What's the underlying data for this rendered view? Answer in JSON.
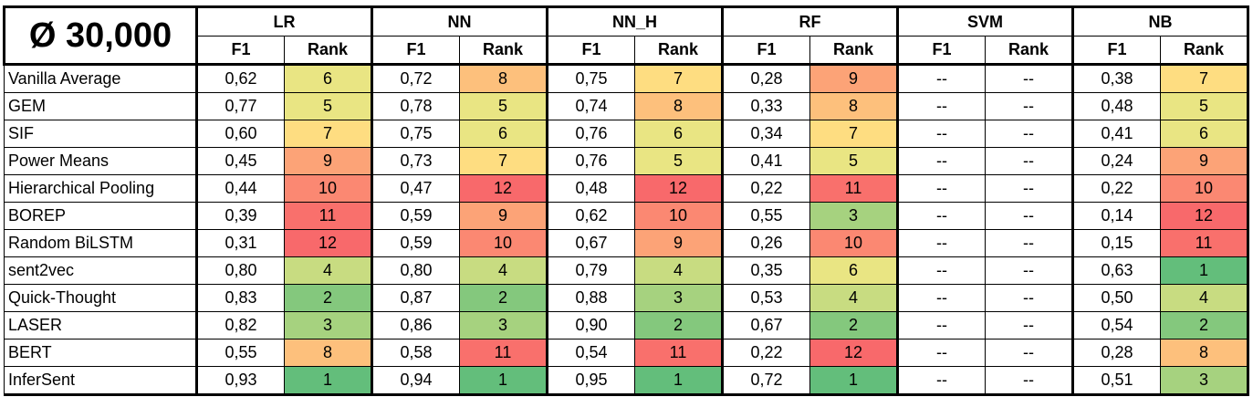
{
  "title": "Ø 30,000",
  "sub_headers": {
    "f1": "F1",
    "rank": "Rank"
  },
  "models": [
    "LR",
    "NN",
    "NN_H",
    "RF",
    "SVM",
    "NB"
  ],
  "rank_colors": {
    "1": "#63be7b",
    "2": "#84c87d",
    "3": "#a6d27f",
    "4": "#c8dc81",
    "5": "#e9e583",
    "6": "#e9e583",
    "7": "#fedd81",
    "8": "#fdc07c",
    "9": "#fca377",
    "10": "#fb8872",
    "11": "#f9706c",
    "12": "#f8696b"
  },
  "rows": [
    {
      "label": "Vanilla Average",
      "cells": [
        [
          "0,62",
          "6"
        ],
        [
          "0,72",
          "8"
        ],
        [
          "0,75",
          "7"
        ],
        [
          "0,28",
          "9"
        ],
        [
          "--",
          "--"
        ],
        [
          "0,38",
          "7"
        ]
      ]
    },
    {
      "label": "GEM",
      "cells": [
        [
          "0,77",
          "5"
        ],
        [
          "0,78",
          "5"
        ],
        [
          "0,74",
          "8"
        ],
        [
          "0,33",
          "8"
        ],
        [
          "--",
          "--"
        ],
        [
          "0,48",
          "5"
        ]
      ]
    },
    {
      "label": "SIF",
      "cells": [
        [
          "0,60",
          "7"
        ],
        [
          "0,75",
          "6"
        ],
        [
          "0,76",
          "6"
        ],
        [
          "0,34",
          "7"
        ],
        [
          "--",
          "--"
        ],
        [
          "0,41",
          "6"
        ]
      ]
    },
    {
      "label": "Power Means",
      "cells": [
        [
          "0,45",
          "9"
        ],
        [
          "0,73",
          "7"
        ],
        [
          "0,76",
          "5"
        ],
        [
          "0,41",
          "5"
        ],
        [
          "--",
          "--"
        ],
        [
          "0,24",
          "9"
        ]
      ]
    },
    {
      "label": "Hierarchical Pooling",
      "cells": [
        [
          "0,44",
          "10"
        ],
        [
          "0,47",
          "12"
        ],
        [
          "0,48",
          "12"
        ],
        [
          "0,22",
          "11"
        ],
        [
          "--",
          "--"
        ],
        [
          "0,22",
          "10"
        ]
      ]
    },
    {
      "label": "BOREP",
      "cells": [
        [
          "0,39",
          "11"
        ],
        [
          "0,59",
          "9"
        ],
        [
          "0,62",
          "10"
        ],
        [
          "0,55",
          "3"
        ],
        [
          "--",
          "--"
        ],
        [
          "0,14",
          "12"
        ]
      ]
    },
    {
      "label": "Random BiLSTM",
      "cells": [
        [
          "0,31",
          "12"
        ],
        [
          "0,59",
          "10"
        ],
        [
          "0,67",
          "9"
        ],
        [
          "0,26",
          "10"
        ],
        [
          "--",
          "--"
        ],
        [
          "0,15",
          "11"
        ]
      ]
    },
    {
      "label": "sent2vec",
      "cells": [
        [
          "0,80",
          "4"
        ],
        [
          "0,80",
          "4"
        ],
        [
          "0,79",
          "4"
        ],
        [
          "0,35",
          "6"
        ],
        [
          "--",
          "--"
        ],
        [
          "0,63",
          "1"
        ]
      ]
    },
    {
      "label": "Quick-Thought",
      "cells": [
        [
          "0,83",
          "2"
        ],
        [
          "0,87",
          "2"
        ],
        [
          "0,88",
          "3"
        ],
        [
          "0,53",
          "4"
        ],
        [
          "--",
          "--"
        ],
        [
          "0,50",
          "4"
        ]
      ]
    },
    {
      "label": "LASER",
      "cells": [
        [
          "0,82",
          "3"
        ],
        [
          "0,86",
          "3"
        ],
        [
          "0,90",
          "2"
        ],
        [
          "0,67",
          "2"
        ],
        [
          "--",
          "--"
        ],
        [
          "0,54",
          "2"
        ]
      ]
    },
    {
      "label": "BERT",
      "cells": [
        [
          "0,55",
          "8"
        ],
        [
          "0,58",
          "11"
        ],
        [
          "0,54",
          "11"
        ],
        [
          "0,22",
          "12"
        ],
        [
          "--",
          "--"
        ],
        [
          "0,28",
          "8"
        ]
      ]
    },
    {
      "label": "InferSent",
      "cells": [
        [
          "0,93",
          "1"
        ],
        [
          "0,94",
          "1"
        ],
        [
          "0,95",
          "1"
        ],
        [
          "0,72",
          "1"
        ],
        [
          "--",
          "--"
        ],
        [
          "0,51",
          "3"
        ]
      ]
    }
  ]
}
